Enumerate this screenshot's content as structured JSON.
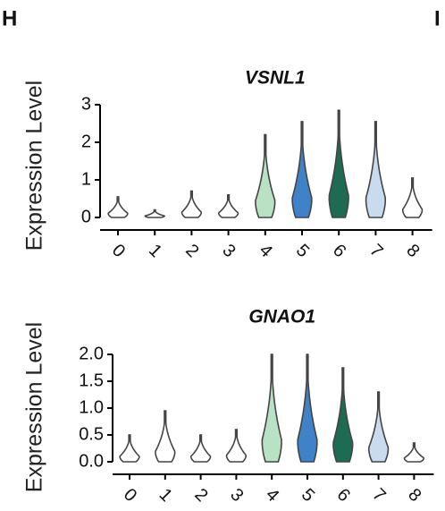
{
  "panel_labels": [
    "H",
    "I"
  ],
  "chart_data": [
    {
      "type": "violin",
      "title": "VSNL1",
      "y_label": "Expression Level",
      "categories": [
        "0",
        "1",
        "2",
        "3",
        "4",
        "5",
        "6",
        "7",
        "8"
      ],
      "values": [
        0.55,
        0.2,
        0.7,
        0.6,
        2.2,
        2.55,
        2.85,
        2.55,
        1.05
      ],
      "colors": [
        "#ffffff",
        "#ffffff",
        "#ffffff",
        "#ffffff",
        "#b9e2c4",
        "#3f82c8",
        "#1d6b52",
        "#c9dbef",
        "#ffffff"
      ],
      "ylim": [
        0,
        3
      ],
      "yticks": [
        0,
        1,
        2,
        3
      ]
    },
    {
      "type": "violin",
      "title": "GNAO1",
      "y_label": "Expression Level",
      "categories": [
        "0",
        "1",
        "2",
        "3",
        "4",
        "5",
        "6",
        "7",
        "8"
      ],
      "values": [
        0.5,
        0.95,
        0.5,
        0.6,
        2.0,
        2.0,
        1.75,
        1.3,
        0.35
      ],
      "colors": [
        "#ffffff",
        "#ffffff",
        "#ffffff",
        "#ffffff",
        "#b9e2c4",
        "#3f82c8",
        "#1d6b52",
        "#c9dbef",
        "#ffffff"
      ],
      "ylim": [
        0,
        2
      ],
      "yticks": [
        {
          "value": 0,
          "label": "0.0"
        },
        {
          "value": 0.5,
          "label": "0.5"
        },
        {
          "value": 1,
          "label": "1.0"
        },
        {
          "value": 1.5,
          "label": "1.5"
        },
        {
          "value": 2,
          "label": "2.0"
        }
      ]
    }
  ]
}
